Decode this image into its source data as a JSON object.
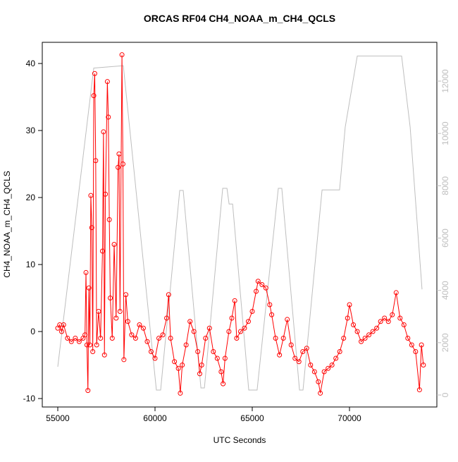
{
  "chart_data": {
    "type": "line",
    "title": "ORCAS RF04 CH4_NOAA_m_CH4_QCLS",
    "x_label": "UTC Seconds",
    "y_label": "CH4_NOAA_m_CH4_QCLS",
    "xlim": [
      54203,
      74493
    ],
    "ylim": [
      -11.26,
      43.16
    ],
    "y2lim": [
      -458,
      13483
    ],
    "xticks": [
      55000,
      60000,
      65000,
      70000
    ],
    "yticks": [
      -10,
      0,
      10,
      20,
      30,
      40
    ],
    "y2ticks": [
      0,
      2000,
      4000,
      6000,
      8000,
      10000,
      12000
    ],
    "series": [
      {
        "color": "#bebebe",
        "axis": "y2",
        "x": [
          55000,
          56850,
          58370,
          60070,
          60290,
          61270,
          61450,
          62360,
          62540,
          63480,
          63700,
          63810,
          63990,
          64820,
          65250,
          66340,
          66520,
          67430,
          67610,
          68590,
          69490,
          69780,
          70400,
          72680,
          73120,
          73730
        ],
        "values": [
          1080,
          12500,
          12590,
          190,
          190,
          7820,
          7820,
          270,
          270,
          7900,
          7900,
          7300,
          7300,
          190,
          190,
          7900,
          7900,
          190,
          190,
          7840,
          7840,
          10240,
          12960,
          12960,
          10240,
          4040
        ]
      },
      {
        "color": "#ff0000",
        "markers": true,
        "x": [
          55000,
          55100,
          55200,
          55300,
          55500,
          55700,
          55900,
          56100,
          56300,
          56400,
          56450,
          56500,
          56550,
          56600,
          56650,
          56700,
          56750,
          56800,
          56850,
          56900,
          56950,
          57000,
          57100,
          57200,
          57300,
          57350,
          57400,
          57450,
          57550,
          57600,
          57650,
          57700,
          57800,
          57900,
          58000,
          58100,
          58150,
          58200,
          58300,
          58350,
          58400,
          58500,
          58600,
          58800,
          59000,
          59200,
          59400,
          59600,
          59800,
          60000,
          60200,
          60400,
          60600,
          60700,
          60800,
          61000,
          61200,
          61300,
          61400,
          61600,
          61800,
          62000,
          62200,
          62300,
          62400,
          62600,
          62800,
          63000,
          63200,
          63400,
          63500,
          63600,
          63800,
          63950,
          64100,
          64200,
          64400,
          64600,
          64800,
          65000,
          65200,
          65300,
          65500,
          65700,
          65900,
          66000,
          66200,
          66400,
          66600,
          66800,
          67000,
          67200,
          67400,
          67600,
          67800,
          68000,
          68200,
          68400,
          68500,
          68700,
          68900,
          69100,
          69300,
          69500,
          69700,
          69900,
          70000,
          70200,
          70400,
          70600,
          70800,
          71000,
          71200,
          71400,
          71600,
          71800,
          72000,
          72200,
          72400,
          72600,
          72800,
          73000,
          73200,
          73400,
          73600,
          73700,
          73800
        ],
        "values": [
          0.5,
          1,
          0,
          1,
          -1,
          -1.5,
          -1,
          -1.5,
          -1,
          -0.5,
          8.8,
          -2,
          -8.8,
          6.5,
          -2,
          20.3,
          15.5,
          -3,
          35.2,
          38.5,
          25.5,
          -2,
          3,
          -1,
          12,
          29.8,
          -3.5,
          20.5,
          37.3,
          32,
          16.7,
          5,
          -1,
          13,
          2,
          24.5,
          26.5,
          3,
          41.3,
          25,
          -4.2,
          5.5,
          1.5,
          -0.5,
          -1,
          1,
          0.5,
          -1.5,
          -3,
          -4,
          -1,
          -0.5,
          2,
          5.5,
          -1,
          -4.5,
          -5.5,
          -9.2,
          -5,
          -2,
          1.5,
          0,
          -3,
          -6.3,
          -5,
          -1,
          0.5,
          -3,
          -4,
          -6,
          -7.8,
          -4,
          0,
          2,
          4.6,
          -1,
          0,
          0.5,
          1.5,
          3,
          6,
          7.5,
          7,
          6.5,
          4,
          2.5,
          -1,
          -3.5,
          -1,
          1.8,
          -2,
          -4,
          -4.5,
          -3,
          -2.5,
          -5,
          -6,
          -7.5,
          -9.2,
          -6,
          -5.5,
          -5,
          -4,
          -3,
          -1,
          2,
          4,
          1,
          0,
          -1.5,
          -1,
          -0.5,
          0,
          0.5,
          1.5,
          2,
          1.5,
          2.5,
          5.8,
          2,
          1,
          -1,
          -2,
          -3,
          -8.7,
          -2,
          -5
        ]
      }
    ]
  }
}
